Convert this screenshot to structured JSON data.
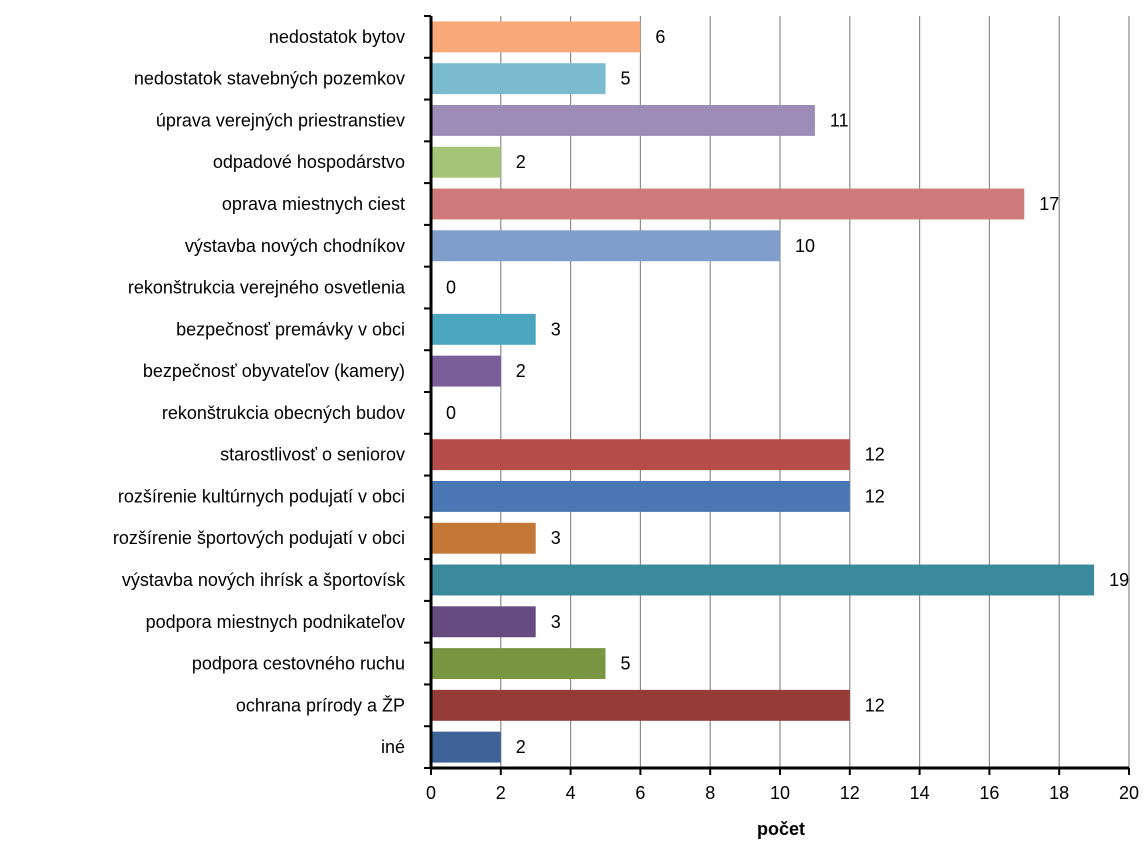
{
  "chart_data": {
    "type": "bar",
    "orientation": "horizontal",
    "categories": [
      "nedostatok bytov",
      "nedostatok stavebných pozemkov",
      "úprava verejných priestranstiev",
      "odpadové hospodárstvo",
      "oprava miestnych ciest",
      "výstavba nových chodníkov",
      "rekonštrukcia verejného osvetlenia",
      "bezpečnosť premávky v obci",
      "bezpečnosť obyvateľov (kamery)",
      "rekonštrukcia obecných budov",
      "starostlivosť o seniorov",
      "rozšírenie kultúrnych podujatí v obci",
      "rozšírenie športových podujatí v obci",
      "výstavba nových ihrísk a športovísk",
      "podpora miestnych podnikateľov",
      "podpora cestovného ruchu",
      "ochrana prírody a ŽP",
      "iné"
    ],
    "values": [
      6,
      5,
      11,
      2,
      17,
      10,
      0,
      3,
      2,
      0,
      12,
      12,
      3,
      19,
      3,
      5,
      12,
      2
    ],
    "colors": [
      "#F9A979",
      "#7ABBD0",
      "#9D8CB7",
      "#A7C579",
      "#CF7B7B",
      "#7F9ECB",
      "#5FA7C0",
      "#4AA5BE",
      "#7A5E99",
      "#8E8E8E",
      "#B54C4A",
      "#4A77B4",
      "#C47838",
      "#3A8A9C",
      "#654B80",
      "#7A9643",
      "#963A38",
      "#3D6398"
    ],
    "xlabel": "počet",
    "ylabel": "",
    "xlim": [
      0,
      20
    ],
    "xticks": [
      0,
      2,
      4,
      6,
      8,
      10,
      12,
      14,
      16,
      18,
      20
    ],
    "grid": "vertical",
    "legend": "none"
  }
}
